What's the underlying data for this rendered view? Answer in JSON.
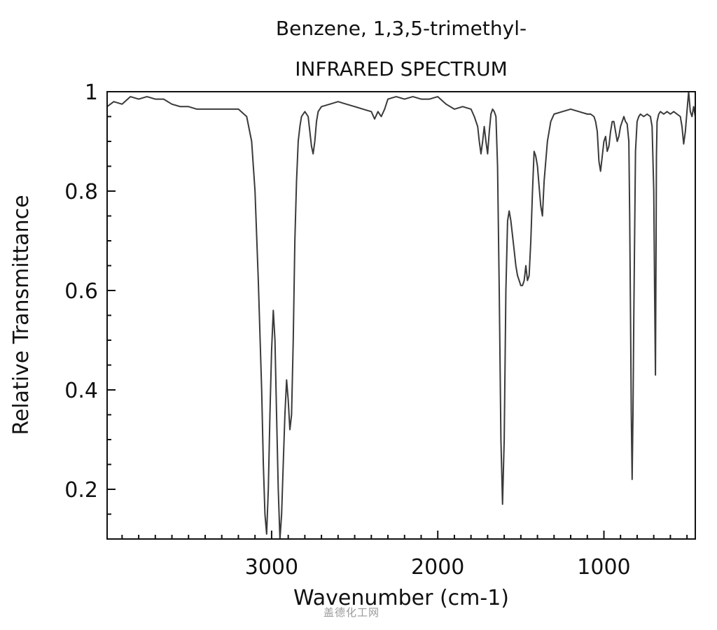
{
  "chart_data": {
    "type": "line",
    "title": "Benzene, 1,3,5-trimethyl-",
    "subtitle": "INFRARED SPECTRUM",
    "xlabel": "Wavenumber (cm-1)",
    "ylabel": "Relative Transmittance",
    "xlim": [
      3990,
      450
    ],
    "ylim": [
      0.1,
      1.0
    ],
    "x_ticks": [
      3000,
      2000,
      1000
    ],
    "y_ticks": [
      0.2,
      0.4,
      0.6,
      0.8,
      1
    ],
    "x_tick_labels": [
      "3000",
      "2000",
      "1000"
    ],
    "y_tick_labels": [
      "0.2",
      "0.4",
      "0.6",
      "0.8",
      "1"
    ],
    "grid": false,
    "line_color": "#3a3a3a",
    "series": [
      {
        "x": [
          3990,
          3950,
          3900,
          3850,
          3800,
          3750,
          3700,
          3650,
          3600,
          3550,
          3500,
          3450,
          3400,
          3350,
          3300,
          3250,
          3200,
          3150,
          3120,
          3100,
          3080,
          3060,
          3050,
          3040,
          3030,
          3020,
          3010,
          3000,
          2990,
          2980,
          2970,
          2960,
          2950,
          2940,
          2930,
          2920,
          2910,
          2900,
          2890,
          2880,
          2870,
          2860,
          2850,
          2840,
          2830,
          2820,
          2800,
          2780,
          2760,
          2750,
          2740,
          2730,
          2720,
          2700,
          2650,
          2600,
          2550,
          2500,
          2450,
          2400,
          2380,
          2360,
          2340,
          2320,
          2300,
          2250,
          2200,
          2150,
          2100,
          2050,
          2000,
          1950,
          1900,
          1850,
          1800,
          1780,
          1760,
          1750,
          1740,
          1730,
          1720,
          1710,
          1700,
          1690,
          1680,
          1670,
          1660,
          1650,
          1640,
          1630,
          1620,
          1610,
          1600,
          1590,
          1580,
          1570,
          1560,
          1550,
          1540,
          1530,
          1520,
          1510,
          1500,
          1490,
          1480,
          1470,
          1460,
          1450,
          1440,
          1430,
          1420,
          1410,
          1400,
          1390,
          1380,
          1370,
          1360,
          1340,
          1320,
          1300,
          1250,
          1200,
          1150,
          1100,
          1080,
          1060,
          1050,
          1040,
          1030,
          1020,
          1010,
          1000,
          990,
          980,
          970,
          960,
          950,
          940,
          930,
          920,
          910,
          900,
          890,
          880,
          870,
          860,
          850,
          845,
          840,
          835,
          830,
          825,
          820,
          810,
          800,
          790,
          780,
          760,
          740,
          720,
          710,
          700,
          695,
          690,
          688,
          686,
          684,
          680,
          670,
          660,
          640,
          620,
          600,
          580,
          560,
          540,
          530,
          520,
          510,
          500,
          490,
          480,
          470,
          460,
          450
        ],
        "y": [
          0.97,
          0.98,
          0.975,
          0.99,
          0.985,
          0.99,
          0.985,
          0.985,
          0.975,
          0.97,
          0.97,
          0.965,
          0.965,
          0.965,
          0.965,
          0.965,
          0.965,
          0.95,
          0.9,
          0.8,
          0.62,
          0.4,
          0.25,
          0.15,
          0.11,
          0.2,
          0.35,
          0.48,
          0.56,
          0.5,
          0.35,
          0.2,
          0.1,
          0.15,
          0.25,
          0.35,
          0.42,
          0.38,
          0.32,
          0.35,
          0.5,
          0.7,
          0.82,
          0.9,
          0.93,
          0.95,
          0.96,
          0.95,
          0.89,
          0.875,
          0.9,
          0.94,
          0.96,
          0.97,
          0.975,
          0.98,
          0.975,
          0.97,
          0.965,
          0.96,
          0.945,
          0.96,
          0.95,
          0.965,
          0.985,
          0.99,
          0.985,
          0.99,
          0.985,
          0.985,
          0.99,
          0.975,
          0.965,
          0.97,
          0.965,
          0.95,
          0.93,
          0.9,
          0.875,
          0.9,
          0.93,
          0.9,
          0.875,
          0.92,
          0.955,
          0.965,
          0.96,
          0.95,
          0.85,
          0.6,
          0.3,
          0.17,
          0.3,
          0.6,
          0.74,
          0.76,
          0.74,
          0.71,
          0.68,
          0.65,
          0.63,
          0.62,
          0.61,
          0.61,
          0.62,
          0.65,
          0.62,
          0.63,
          0.7,
          0.8,
          0.88,
          0.87,
          0.85,
          0.81,
          0.77,
          0.75,
          0.82,
          0.9,
          0.94,
          0.955,
          0.96,
          0.965,
          0.96,
          0.955,
          0.955,
          0.95,
          0.94,
          0.92,
          0.86,
          0.84,
          0.87,
          0.9,
          0.91,
          0.88,
          0.89,
          0.92,
          0.94,
          0.94,
          0.92,
          0.9,
          0.91,
          0.93,
          0.94,
          0.95,
          0.94,
          0.935,
          0.9,
          0.75,
          0.55,
          0.35,
          0.22,
          0.35,
          0.55,
          0.88,
          0.94,
          0.95,
          0.955,
          0.95,
          0.955,
          0.95,
          0.93,
          0.8,
          0.6,
          0.43,
          0.55,
          0.7,
          0.87,
          0.94,
          0.955,
          0.96,
          0.955,
          0.96,
          0.955,
          0.96,
          0.955,
          0.95,
          0.93,
          0.895,
          0.92,
          0.96,
          1.0,
          0.96,
          0.95,
          0.97,
          0.95
        ]
      }
    ]
  },
  "watermark": "盖德化工网"
}
